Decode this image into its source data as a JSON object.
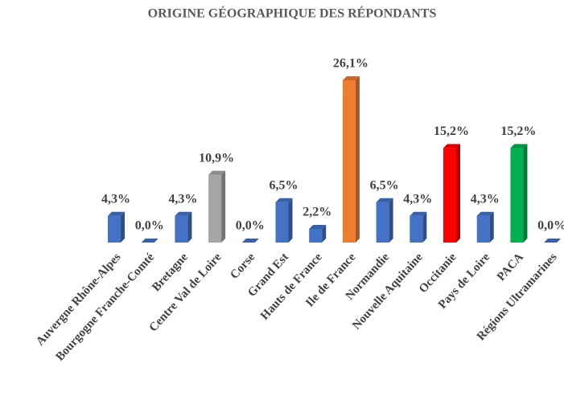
{
  "chart_data": {
    "type": "bar",
    "title": "ORIGINE  GÉOGRAPHIQUE DES RÉPONDANTS",
    "categories": [
      "Auvergne Rhône-Alpes",
      "Bourgogne Franche-Comté",
      "Bretagne",
      "Centre Val de Loire",
      "Corse",
      "Grand Est",
      "Hauts de France",
      "Ile de France",
      "Normandie",
      "Nouvelle Aquitaine",
      "Occitanie",
      "Pays de Loire",
      "PACA",
      "Régions Ultramarines"
    ],
    "values": [
      4.3,
      0,
      4.3,
      10.9,
      0,
      6.5,
      2.2,
      26.1,
      6.5,
      4.3,
      15.2,
      4.3,
      15.2,
      0
    ],
    "value_labels": [
      "4,3%",
      "0,0%",
      "4,3%",
      "10,9%",
      "0,0%",
      "6,5%",
      "2,2%",
      "26,1%",
      "6,5%",
      "4,3%",
      "15,2%",
      "4,3%",
      "15,2%",
      "0,0%"
    ],
    "colors": [
      "#4472c4",
      "#4472c4",
      "#4472c4",
      "#a5a5a5",
      "#4472c4",
      "#4472c4",
      "#4472c4",
      "#ed7d31",
      "#4472c4",
      "#4472c4",
      "#ff0000",
      "#4472c4",
      "#00b050",
      "#4472c4"
    ]
  }
}
